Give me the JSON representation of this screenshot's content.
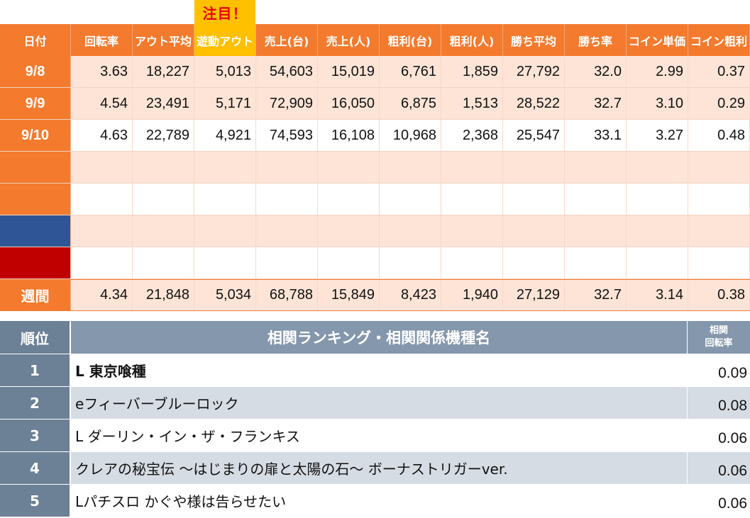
{
  "badge": "注目！",
  "columns": [
    "日付",
    "回転率",
    "アウト平均",
    "遊動アウト",
    "売上(台)",
    "売上(人)",
    "粗利(台)",
    "粗利(人)",
    "勝ち平均",
    "勝ち率",
    "コイン単価",
    "コイン粗利"
  ],
  "rows": [
    {
      "label": "9/8",
      "values": [
        "3.63",
        "18,227",
        "5,013",
        "54,603",
        "15,019",
        "6,761",
        "1,859",
        "27,792",
        "32.0",
        "2.99",
        "0.37"
      ]
    },
    {
      "label": "9/9",
      "values": [
        "4.54",
        "23,491",
        "5,171",
        "72,909",
        "16,050",
        "6,875",
        "1,513",
        "28,522",
        "32.7",
        "3.10",
        "0.29"
      ]
    },
    {
      "label": "9/10",
      "values": [
        "4.63",
        "22,789",
        "4,921",
        "74,593",
        "16,108",
        "10,968",
        "2,368",
        "25,547",
        "33.1",
        "3.27",
        "0.48"
      ]
    }
  ],
  "empty_label_colors": [
    "#f47a2e",
    "#f47a2e",
    "#2f5597",
    "#c00000"
  ],
  "total": {
    "label": "週間",
    "values": [
      "4.34",
      "21,848",
      "5,034",
      "68,788",
      "15,849",
      "8,423",
      "1,940",
      "27,129",
      "32.7",
      "3.14",
      "0.38"
    ]
  },
  "ranking": {
    "header": {
      "rank": "順位",
      "title": "相関ランキング・相関関係機種名",
      "value_line1": "相関",
      "value_line2": "回転率"
    },
    "items": [
      {
        "rank": "1",
        "name": "L 東京喰種",
        "value": "0.09"
      },
      {
        "rank": "2",
        "name": "eフィーバーブルーロック",
        "value": "0.08"
      },
      {
        "rank": "3",
        "name": "L ダーリン・イン・ザ・フランキス",
        "value": "0.06"
      },
      {
        "rank": "4",
        "name": "クレアの秘宝伝 ～はじまりの扉と太陽の石～ ボーナストリガーver.",
        "value": "0.06"
      },
      {
        "rank": "5",
        "name": "Lパチスロ かぐや様は告らせたい",
        "value": "0.06"
      }
    ]
  }
}
